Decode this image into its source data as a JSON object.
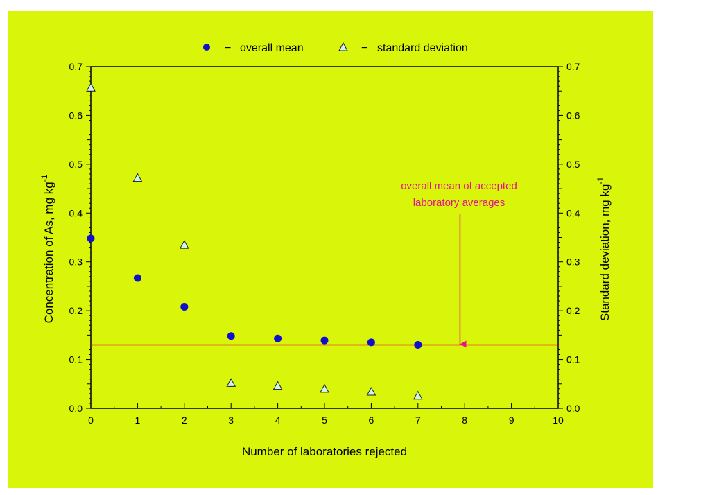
{
  "chart_data": {
    "type": "scatter",
    "xlabel": "Number of laboratories rejected",
    "ylabel_left": "Concentration of As, mg kg",
    "ylabel_left_sup": "-1",
    "ylabel_right": "Standard deviation, mg kg",
    "ylabel_right_sup": "-1",
    "xlim": [
      0,
      10
    ],
    "ylim": [
      0,
      0.7
    ],
    "x_ticks": [
      0,
      1,
      2,
      3,
      4,
      5,
      6,
      7,
      8,
      9,
      10
    ],
    "y_ticks": [
      0.0,
      0.1,
      0.2,
      0.3,
      0.4,
      0.5,
      0.6,
      0.7
    ],
    "y_tick_labels": [
      "0.0",
      "0.1",
      "0.2",
      "0.3",
      "0.4",
      "0.5",
      "0.6",
      "0.7"
    ],
    "series": [
      {
        "name": "overall mean",
        "marker": "circle",
        "color": "#1010cc",
        "x": [
          0,
          1,
          2,
          3,
          4,
          5,
          6,
          7
        ],
        "y": [
          0.348,
          0.267,
          0.208,
          0.148,
          0.143,
          0.139,
          0.135,
          0.13
        ]
      },
      {
        "name": "standard deviation",
        "marker": "triangle",
        "color": "#1a1a1a",
        "fill": "#ccf5ee",
        "x": [
          0,
          1,
          2,
          3,
          4,
          5,
          6,
          7
        ],
        "y": [
          0.657,
          0.472,
          0.335,
          0.052,
          0.046,
          0.04,
          0.034,
          0.026
        ]
      }
    ],
    "legend": {
      "position": "top-center",
      "entries": [
        {
          "marker": "circle",
          "dash": "−",
          "label": "overall mean"
        },
        {
          "marker": "triangle",
          "dash": "−",
          "label": "standard deviation"
        }
      ]
    },
    "reference_line": {
      "y": 0.13,
      "color": "#e8112d"
    },
    "annotation": {
      "lines": [
        "overall mean of accepted",
        "laboratory averages"
      ],
      "arrow_x": 7.9,
      "color": "#e8118c"
    },
    "colors": {
      "background": "#d9f50a"
    }
  }
}
